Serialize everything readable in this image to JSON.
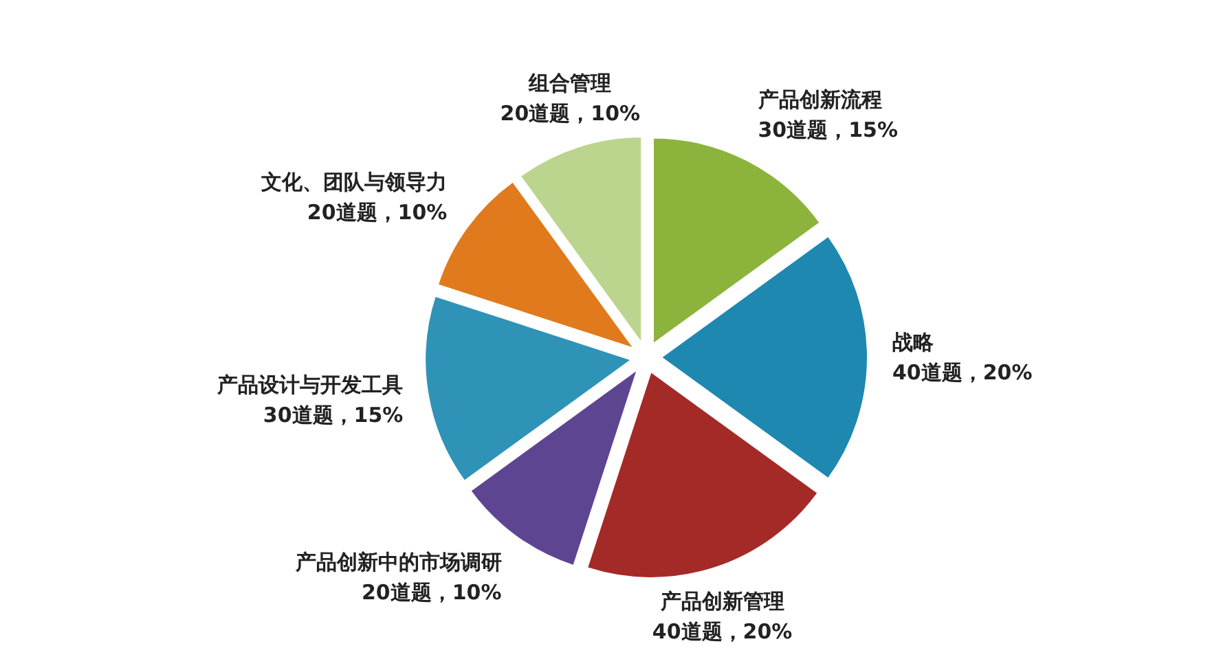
{
  "chart_data": {
    "type": "pie",
    "categories": [
      "产品创新流程",
      "战略",
      "产品创新管理",
      "产品创新中的市场调研",
      "产品设计与开发工具",
      "文化、团队与领导力",
      "组合管理"
    ],
    "values": [
      30,
      40,
      40,
      20,
      30,
      20,
      20
    ],
    "value_labels": [
      "30道题，15%",
      "40道题，20%",
      "40道题，20%",
      "20道题，10%",
      "30道题，15%",
      "20道题，10%",
      "20道题，10%"
    ],
    "colors": [
      "#8cb43c",
      "#1f88b0",
      "#a42a28",
      "#5e4592",
      "#2f93b8",
      "#e07a1c",
      "#bcd58e"
    ],
    "legend": false
  }
}
